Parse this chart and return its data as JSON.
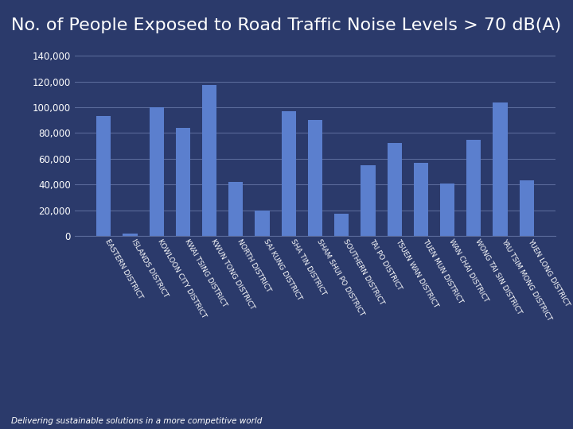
{
  "title": "No. of People Exposed to Road Traffic Noise Levels > 70 dB(A)",
  "categories": [
    "EASTERN DISTRICT",
    "ISLANDS DISTRICT",
    "KOWLOON CITY DISTRICT",
    "KWAI TSING DISTRICT",
    "KWUN TONG DISTRICT",
    "NORTH DISTRICT",
    "SAI KUNG DISTRICT",
    "SHA TIN DISTRICT",
    "SHAM SHUI PO DISTRICT",
    "SOUTHERN DISTRICT",
    "TAI PO DISTRICT",
    "TSUEN WAN DISTRICT",
    "TUEN MUN DISTRICT",
    "WAN CHAI DISTRICT",
    "WONG TAI SIN DISTRICT",
    "YAU TSIM MONG DISTRICT",
    "YUEN LONG DISTRICT"
  ],
  "values": [
    93000,
    2000,
    100000,
    84000,
    117000,
    42000,
    20000,
    97000,
    90000,
    17000,
    55000,
    72000,
    57000,
    41000,
    75000,
    104000,
    43000
  ],
  "bar_color": "#5b7fce",
  "background_color": "#2b3a6b",
  "text_color": "#ffffff",
  "grid_color": "#5a6a9a",
  "ylim": [
    0,
    140000
  ],
  "yticks": [
    0,
    20000,
    40000,
    60000,
    80000,
    100000,
    120000,
    140000
  ],
  "title_fontsize": 16,
  "tick_fontsize": 6.5,
  "footer_text": "Delivering sustainable solutions in a more competitive world"
}
